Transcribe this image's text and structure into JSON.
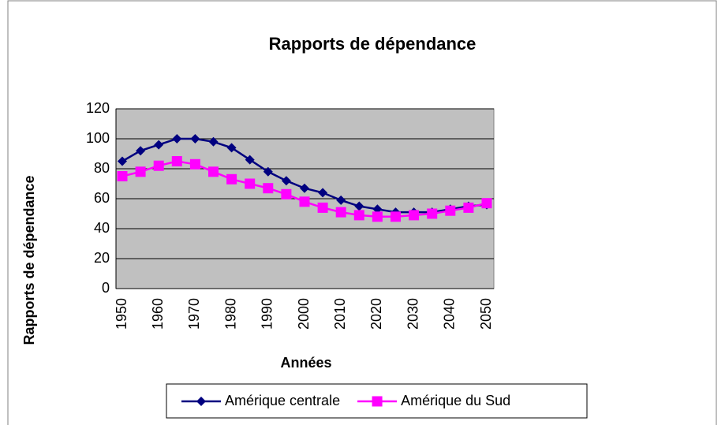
{
  "chart_data": {
    "type": "line",
    "title": "Rapports de dépendance",
    "y_label": "Rapports de dépendance",
    "x_label": "Années",
    "categories": [
      "1950",
      null,
      "1960",
      null,
      "1970",
      null,
      "1980",
      null,
      "1990",
      null,
      "2000",
      null,
      "2010",
      null,
      "2020",
      null,
      "2030",
      null,
      "2040",
      null,
      "2050"
    ],
    "series": [
      {
        "name": "Amérique centrale",
        "color": "#000080",
        "marker": "diamond",
        "values": [
          85,
          92,
          96,
          100,
          100,
          98,
          94,
          86,
          78,
          72,
          67,
          64,
          59,
          55,
          53,
          51,
          51,
          51,
          53,
          55,
          56
        ]
      },
      {
        "name": "Amérique du Sud",
        "color": "#ff00ff",
        "marker": "square",
        "values": [
          75,
          78,
          82,
          85,
          83,
          78,
          73,
          70,
          67,
          63,
          58,
          54,
          51,
          49,
          48,
          48,
          49,
          50,
          52,
          54,
          57
        ]
      }
    ],
    "ylim": [
      0,
      120
    ],
    "yticks": [
      0,
      20,
      40,
      60,
      80,
      100,
      120
    ],
    "grid": true,
    "plot_background": "#c0c0c0",
    "legend": "bottom"
  }
}
